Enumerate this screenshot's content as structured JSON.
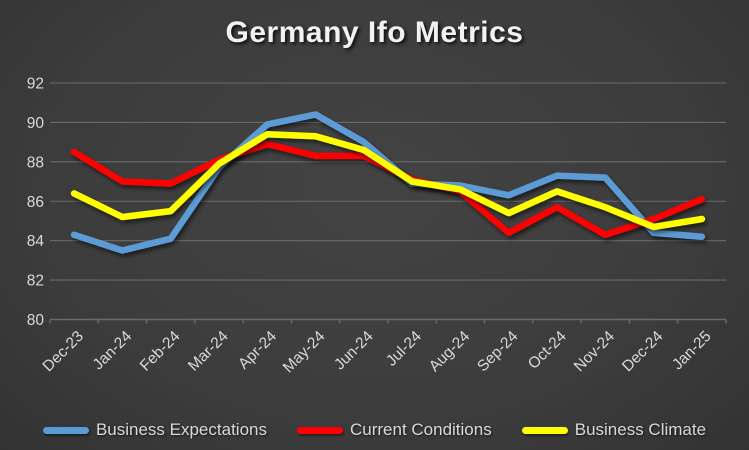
{
  "title": "Germany Ifo Metrics",
  "colors": {
    "background_center": "#424242",
    "background_edge": "#232323",
    "gridline": "#6a6a6a",
    "axis_text": "#d9d9d9",
    "title_text": "#f2f2f2",
    "series_blue": "#5B9BD5",
    "series_red": "#FF0000",
    "series_yellow": "#FFFF00"
  },
  "chart_data": {
    "type": "line",
    "title": "Germany Ifo Metrics",
    "categories": [
      "Dec-23",
      "Jan-24",
      "Feb-24",
      "Mar-24",
      "Apr-24",
      "May-24",
      "Jun-24",
      "Jul-24",
      "Aug-24",
      "Sep-24",
      "Oct-24",
      "Nov-24",
      "Dec-24",
      "Jan-25"
    ],
    "series": [
      {
        "name": "Business Expectations",
        "color": "#5B9BD5",
        "values": [
          84.3,
          83.5,
          84.1,
          87.7,
          89.9,
          90.4,
          89.0,
          86.9,
          86.8,
          86.3,
          87.3,
          87.2,
          84.4,
          84.2
        ]
      },
      {
        "name": "Current Conditions",
        "color": "#FF0000",
        "values": [
          88.5,
          87.0,
          86.9,
          88.1,
          88.9,
          88.3,
          88.3,
          87.1,
          86.5,
          84.4,
          85.7,
          84.3,
          85.1,
          86.1
        ]
      },
      {
        "name": "Business Climate",
        "color": "#FFFF00",
        "values": [
          86.4,
          85.2,
          85.5,
          87.9,
          89.4,
          89.3,
          88.6,
          87.0,
          86.6,
          85.4,
          86.5,
          85.7,
          84.7,
          85.1
        ]
      }
    ],
    "xlabel": "",
    "ylabel": "",
    "ylim": [
      80,
      92
    ],
    "ytick_step": 2,
    "yticks": [
      80,
      82,
      84,
      86,
      88,
      90,
      92
    ],
    "grid": true,
    "legend_position": "bottom",
    "x_label_rotation_deg": 45
  }
}
